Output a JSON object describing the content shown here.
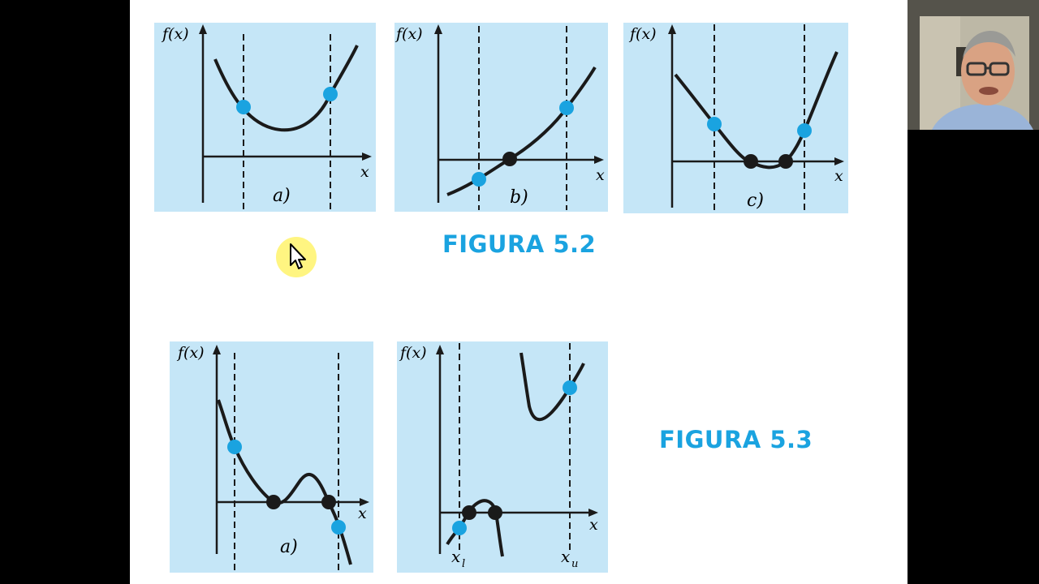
{
  "slide": {
    "figure_5_2": {
      "title": "FIGURA 5.2",
      "panels": [
        {
          "id": "a",
          "y_label": "f(x)",
          "x_label": "x",
          "sub_label": "a)"
        },
        {
          "id": "b",
          "y_label": "f(x)",
          "x_label": "x",
          "sub_label": "b)"
        },
        {
          "id": "c",
          "y_label": "f(x)",
          "x_label": "x",
          "sub_label": "c)"
        }
      ]
    },
    "figure_5_3": {
      "title": "FIGURA 5.3",
      "panels": [
        {
          "id": "a",
          "y_label": "f(x)",
          "x_label": "x",
          "sub_label": "a)"
        },
        {
          "id": "b",
          "y_label": "f(x)",
          "x_label": "x",
          "bound_lower": "x",
          "bound_lower_sub": "l",
          "bound_upper": "x",
          "bound_upper_sub": "u"
        }
      ]
    }
  },
  "colors": {
    "panel_bg": "#c5e6f7",
    "curve": "#1a1a1a",
    "bound_point": "#1aa3e0",
    "root_point": "#1a1a1a",
    "title": "#1aa3e0",
    "cursor_highlight": "#fff36b"
  },
  "icons": {
    "cursor": "mouse-pointer-icon"
  }
}
